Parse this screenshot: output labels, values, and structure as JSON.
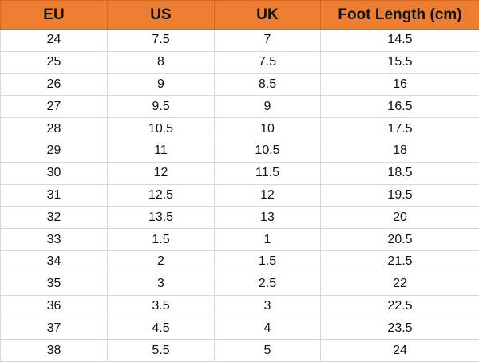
{
  "colors": {
    "header_bg": "#ED7D31"
  },
  "headers": [
    "EU",
    "US",
    "UK",
    "Foot Length (cm)"
  ],
  "rows": [
    [
      "24",
      "7.5",
      "7",
      "14.5"
    ],
    [
      "25",
      "8",
      "7.5",
      "15.5"
    ],
    [
      "26",
      "9",
      "8.5",
      "16"
    ],
    [
      "27",
      "9.5",
      "9",
      "16.5"
    ],
    [
      "28",
      "10.5",
      "10",
      "17.5"
    ],
    [
      "29",
      "11",
      "10.5",
      "18"
    ],
    [
      "30",
      "12",
      "11.5",
      "18.5"
    ],
    [
      "31",
      "12.5",
      "12",
      "19.5"
    ],
    [
      "32",
      "13.5",
      "13",
      "20"
    ],
    [
      "33",
      "1.5",
      "1",
      "20.5"
    ],
    [
      "34",
      "2",
      "1.5",
      "21.5"
    ],
    [
      "35",
      "3",
      "2.5",
      "22"
    ],
    [
      "36",
      "3.5",
      "3",
      "22.5"
    ],
    [
      "37",
      "4.5",
      "4",
      "23.5"
    ],
    [
      "38",
      "5.5",
      "5",
      "24"
    ]
  ]
}
